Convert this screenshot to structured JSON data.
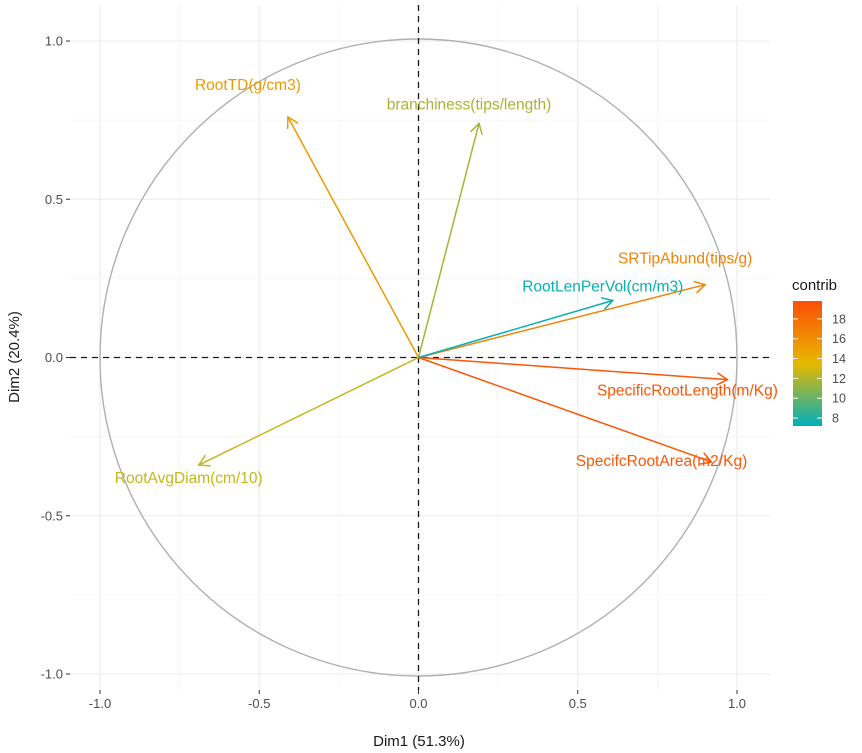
{
  "chart_data": {
    "type": "scatter",
    "subtype": "pca-variable-correlation-circle",
    "xlabel": "Dim1 (51.3%)",
    "ylabel": "Dim2 (20.4%)",
    "xlim": [
      -1.0,
      1.0
    ],
    "ylim": [
      -1.0,
      1.0
    ],
    "x_ticks": [
      -1.0,
      -0.5,
      0.0,
      0.5,
      1.0
    ],
    "x_tick_labels": [
      "-1.0",
      "-0.5",
      "0.0",
      "0.5",
      "1.0"
    ],
    "y_ticks": [
      -1.0,
      -0.5,
      0.0,
      0.5,
      1.0
    ],
    "y_tick_labels": [
      "-1.0",
      "-0.5",
      "0.0",
      "0.5",
      "1.0"
    ],
    "grid": true,
    "unit_circle": true,
    "reference_lines": [
      0,
      0
    ],
    "variables": [
      {
        "label": "RootTD(g/cm3)",
        "x": -0.41,
        "y": 0.76,
        "contrib": 15.2
      },
      {
        "label": "branchiness(tips/length)",
        "x": 0.19,
        "y": 0.74,
        "contrib": 11.8
      },
      {
        "label": "SRTipAbund(tips/g)",
        "x": 0.9,
        "y": 0.23,
        "contrib": 16.5
      },
      {
        "label": "RootLenPerVol(cm/m3)",
        "x": 0.61,
        "y": 0.18,
        "contrib": 7.6
      },
      {
        "label": "SpecificRootLength(m/Kg)",
        "x": 0.97,
        "y": -0.07,
        "contrib": 19.2
      },
      {
        "label": "SpecifcRootArea(m2/Kg)",
        "x": 0.92,
        "y": -0.33,
        "contrib": 19.0
      },
      {
        "label": "RootAvgDiam(cm/10)",
        "x": -0.69,
        "y": -0.34,
        "contrib": 12.6
      }
    ],
    "legend": {
      "title": "contrib",
      "placement": "right",
      "range": [
        7.4,
        19.6
      ],
      "ticks": [
        8,
        10,
        12,
        14,
        16,
        18
      ],
      "tick_labels": [
        "8",
        "10",
        "12",
        "14",
        "16",
        "18"
      ],
      "gradient": [
        "#00AFBB",
        "#E7B800",
        "#FC4E07"
      ]
    }
  }
}
